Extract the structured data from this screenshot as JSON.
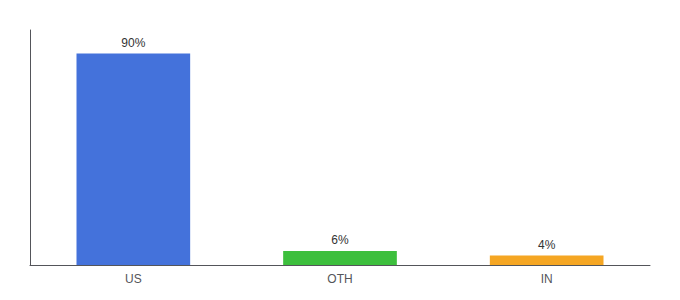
{
  "chart_data": {
    "type": "bar",
    "categories": [
      "US",
      "OTH",
      "IN"
    ],
    "values": [
      90,
      6,
      4
    ],
    "value_labels": [
      "90%",
      "6%",
      "4%"
    ],
    "colors": [
      "#4472db",
      "#3dbf3d",
      "#f5a623"
    ],
    "ylim": [
      0,
      100
    ],
    "grid": false,
    "data_labels": true,
    "tick_labels": "x"
  }
}
